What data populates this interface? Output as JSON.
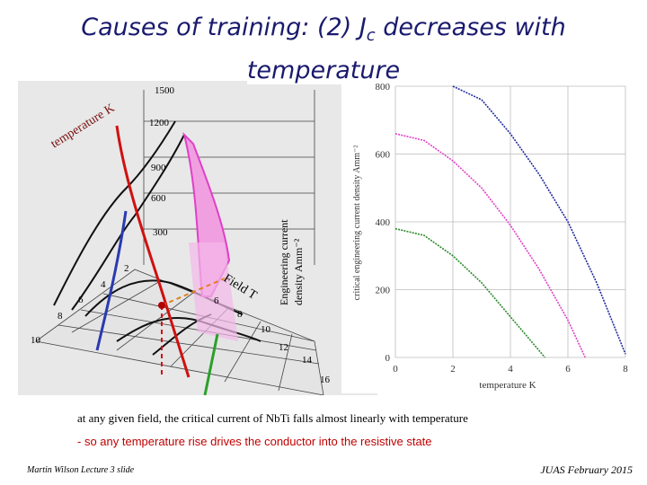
{
  "title": {
    "line1_prefix": "Causes of training: (2)  J",
    "line1_sub": "c",
    "line1_suffix": " decreases with",
    "line2": "temperature"
  },
  "surface_plot": {
    "temperature_axis_label": "temperature K",
    "current_density_ticks": [
      "1500",
      "1200",
      "900",
      "600",
      "300"
    ],
    "field_axis_label": "Field T",
    "field_ticks": [
      "6",
      "8",
      "10",
      "12",
      "14",
      "16"
    ],
    "temperature_ticks": [
      "2",
      "4",
      "6",
      "8",
      "10"
    ],
    "vertical_axis_label_line1": "Engineering current",
    "vertical_axis_label_line2": "density Amm⁻²"
  },
  "chart_data": {
    "type": "line",
    "title": "",
    "xlabel": "temperature K",
    "ylabel": "critical engineering current density  Amm⁻²",
    "x_ticks": [
      0,
      2,
      4,
      6,
      8
    ],
    "y_ticks": [
      0,
      200,
      400,
      600,
      800
    ],
    "xlim": [
      0,
      8
    ],
    "ylim": [
      0,
      800
    ],
    "series": [
      {
        "name": "blue",
        "color": "#1f2aa0",
        "x": [
          2.0,
          3.0,
          4.0,
          5.0,
          6.0,
          7.0,
          8.0
        ],
        "y": [
          800,
          760,
          660,
          540,
          400,
          220,
          10
        ]
      },
      {
        "name": "magenta",
        "color": "#e040c8",
        "x": [
          0,
          1.0,
          2.0,
          3.0,
          4.0,
          5.0,
          6.0,
          6.6
        ],
        "y": [
          660,
          640,
          580,
          500,
          390,
          260,
          110,
          0
        ]
      },
      {
        "name": "green",
        "color": "#2a8a2a",
        "x": [
          0,
          1.0,
          2.0,
          3.0,
          4.0,
          5.0,
          5.2
        ],
        "y": [
          380,
          360,
          300,
          220,
          120,
          20,
          0
        ]
      }
    ]
  },
  "text": {
    "line1": "at any given field, the critical current of NbTi falls almost linearly with temperature",
    "line2": "- so any temperature rise drives the  conductor into the resistive state"
  },
  "footer": {
    "left": "Martin Wilson Lecture 3 slide",
    "right": "JUAS February 2015"
  }
}
